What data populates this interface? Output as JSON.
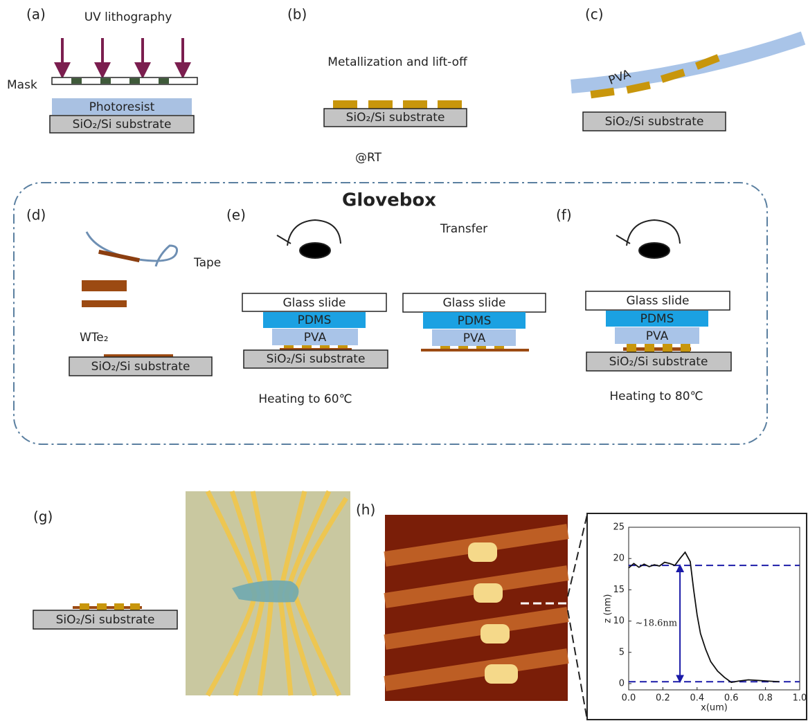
{
  "panels": {
    "a": {
      "label": "(a)",
      "title": "UV lithography",
      "mask": "Mask",
      "photoresist": "Photoresist",
      "substrate": "SiO₂/Si substrate"
    },
    "b": {
      "label": "(b)",
      "caption": "Metallization and lift-off",
      "substrate": "SiO₂/Si substrate",
      "note": "@RT"
    },
    "c": {
      "label": "(c)",
      "pva": "PVA",
      "substrate": "SiO₂/Si substrate"
    },
    "d": {
      "label": "(d)",
      "tape": "Tape",
      "material": "WTe₂",
      "substrate": "SiO₂/Si substrate"
    },
    "e": {
      "label": "(e)",
      "transfer": "Transfer",
      "glass": "Glass slide",
      "pdms": "PDMS",
      "pva": "PVA",
      "substrate": "SiO₂/Si substrate",
      "glass2": "Glass slide",
      "pdms2": "PDMS",
      "pva2": "PVA",
      "heating": "Heating to 60℃"
    },
    "f": {
      "label": "(f)",
      "glass": "Glass slide",
      "pdms": "PDMS",
      "pva": "PVA",
      "substrate": "SiO₂/Si substrate",
      "heating": "Heating to 80℃"
    },
    "g": {
      "label": "(g)",
      "substrate": "SiO₂/Si substrate"
    },
    "h": {
      "label": "(h)"
    }
  },
  "glovebox": "Glovebox",
  "chart_data": {
    "type": "line",
    "xlabel": "x(um)",
    "ylabel": "z (nm)",
    "annotation": "~18.6nm",
    "x": [
      0,
      0.03,
      0.06,
      0.09,
      0.12,
      0.15,
      0.18,
      0.21,
      0.24,
      0.27,
      0.3,
      0.33,
      0.36,
      0.38,
      0.4,
      0.42,
      0.45,
      0.48,
      0.52,
      0.56,
      0.6,
      0.64,
      0.7,
      0.76,
      0.82,
      0.88
    ],
    "series": [
      {
        "name": "z",
        "color": "#111111",
        "values": [
          18.5,
          19.2,
          18.6,
          19.1,
          18.7,
          19.0,
          18.8,
          19.4,
          19.2,
          18.9,
          20.0,
          21.0,
          19.5,
          15,
          11,
          8,
          5.5,
          3.5,
          2,
          1,
          0.2,
          0.4,
          0.6,
          0.5,
          0.4,
          0.3
        ]
      }
    ],
    "reference_lines": [
      18.9,
      0.3
    ],
    "reference_color": "#1a1aa8",
    "xlim": [
      0,
      1.0
    ],
    "xticks": [
      {
        "value": 0,
        "label": "0.0"
      },
      0.2,
      0.4,
      0.6,
      0.8,
      {
        "value": 1.0,
        "label": "1.0"
      }
    ],
    "ylim": [
      -1,
      25
    ],
    "yticks": [
      0,
      5,
      10,
      15,
      20,
      25
    ]
  }
}
